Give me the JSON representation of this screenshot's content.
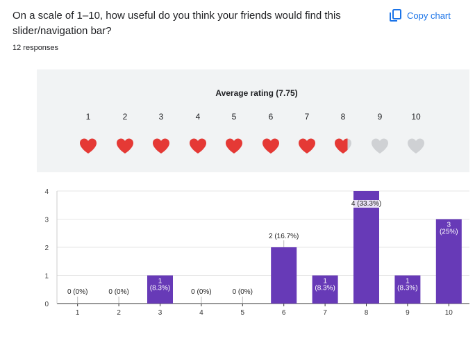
{
  "question": {
    "line1": "On a scale of 1–10, how useful do you think your friends would find this",
    "line2": "slider/navigation bar?"
  },
  "responses_label": "12 responses",
  "copy_label": "Copy chart",
  "rating": {
    "title": "Average rating (7.75)",
    "average": 7.75,
    "scale": [
      "1",
      "2",
      "3",
      "4",
      "5",
      "6",
      "7",
      "8",
      "9",
      "10"
    ]
  },
  "colors": {
    "heart_full": "#e53935",
    "heart_empty": "#cfd1d4",
    "bar": "#673ab7",
    "accent": "#1a73e8"
  },
  "chart_data": {
    "type": "bar",
    "categories": [
      "1",
      "2",
      "3",
      "4",
      "5",
      "6",
      "7",
      "8",
      "9",
      "10"
    ],
    "values": [
      0,
      0,
      1,
      0,
      0,
      2,
      1,
      4,
      1,
      3
    ],
    "labels": [
      [
        "0 (0%)"
      ],
      [
        "0 (0%)"
      ],
      [
        "1",
        "(8.3%)"
      ],
      [
        "0 (0%)"
      ],
      [
        "0 (0%)"
      ],
      [
        "2 (16.7%)"
      ],
      [
        "1",
        "(8.3%)"
      ],
      [
        "4 (33.3%)"
      ],
      [
        "1",
        "(8.3%)"
      ],
      [
        "3",
        "(25%)"
      ]
    ],
    "ylim": [
      0,
      4
    ],
    "yticks": [
      "0",
      "1",
      "2",
      "3",
      "4"
    ],
    "title": "",
    "xlabel": "",
    "ylabel": ""
  }
}
